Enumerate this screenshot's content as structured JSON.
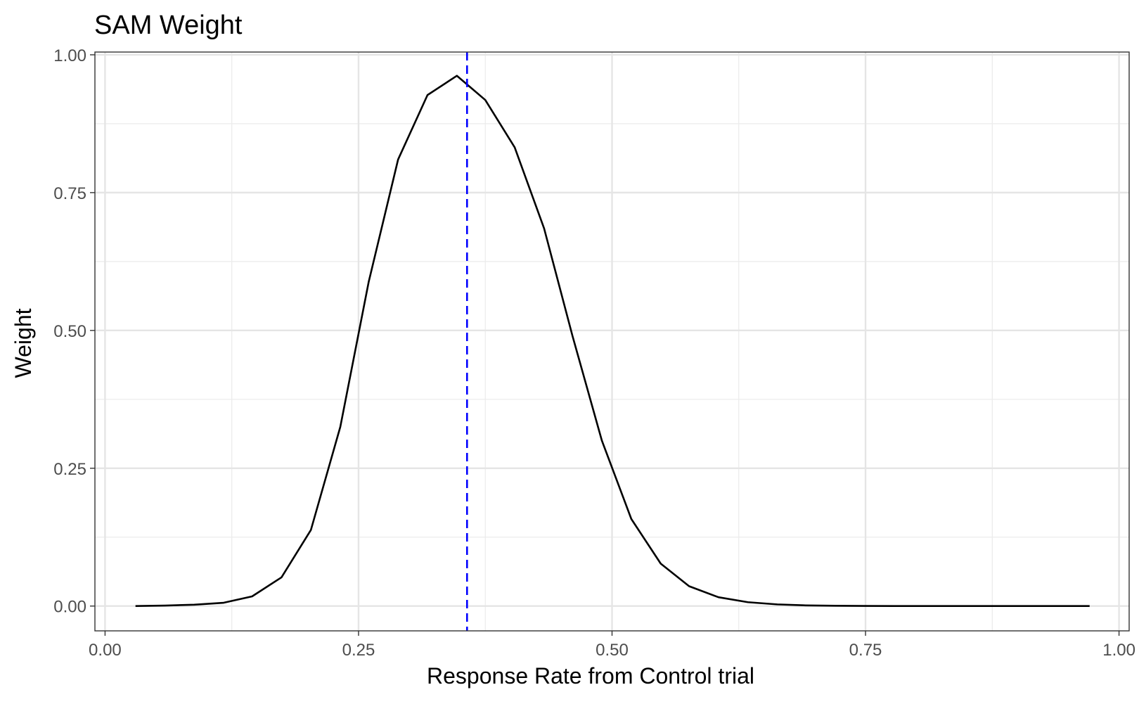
{
  "chart_data": {
    "type": "line",
    "title": "SAM Weight",
    "xlabel": "Response Rate from Control trial",
    "ylabel": "Weight",
    "xlim": [
      -0.01,
      1.01
    ],
    "ylim": [
      -0.045,
      1.005
    ],
    "x_ticks": [
      0.0,
      0.25,
      0.5,
      0.75,
      1.0
    ],
    "x_tick_labels": [
      "0.00",
      "0.25",
      "0.50",
      "0.75",
      "1.00"
    ],
    "y_ticks": [
      0.0,
      0.25,
      0.5,
      0.75,
      1.0
    ],
    "y_tick_labels": [
      "0.00",
      "0.25",
      "0.50",
      "0.75",
      "1.00"
    ],
    "grid": true,
    "series": [
      {
        "color": "#000000",
        "x": [
          0.03,
          0.059,
          0.088,
          0.117,
          0.145,
          0.174,
          0.203,
          0.232,
          0.26,
          0.289,
          0.318,
          0.347,
          0.375,
          0.404,
          0.433,
          0.461,
          0.49,
          0.519,
          0.548,
          0.576,
          0.605,
          0.634,
          0.663,
          0.691,
          0.72,
          0.749,
          0.778,
          0.806,
          0.835,
          0.864,
          0.893,
          0.921,
          0.95,
          0.971
        ],
        "y": [
          0.0,
          0.0008,
          0.0025,
          0.006,
          0.0175,
          0.052,
          0.138,
          0.325,
          0.588,
          0.81,
          0.927,
          0.962,
          0.918,
          0.832,
          0.685,
          0.49,
          0.3,
          0.158,
          0.077,
          0.036,
          0.016,
          0.007,
          0.003,
          0.0012,
          0.0005,
          0.0002,
          0.0001,
          0.0,
          0.0,
          0.0,
          0.0,
          0.0,
          0.0,
          0.0
        ]
      }
    ],
    "reference_line": {
      "x": 0.357,
      "color": "#0000ff",
      "style": "dashed"
    }
  }
}
